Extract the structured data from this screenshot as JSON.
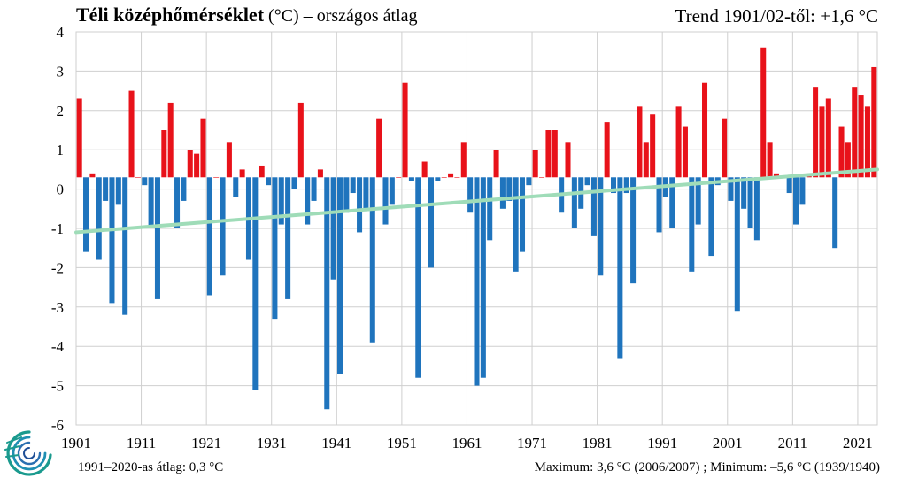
{
  "header": {
    "title_bold": "Téli középhőmérséklet",
    "title_unit": " (°C)",
    "title_rest": " – országos  átlag",
    "trend_text": "Trend 1901/02-től: +1,6 °C"
  },
  "footer": {
    "average_text": "1991–2020-as  átlag:  0,3 °C",
    "extremes_text": "Maximum:  3,6 °C (2006/2007)  ; Minimum:  –5,6 °C (1939/1940)"
  },
  "logo": {
    "name": "met-service-logo"
  },
  "chart_data": {
    "type": "bar",
    "title": "Téli középhőmérséklet (°C) – országos átlag",
    "xlabel": "",
    "ylabel": "°C",
    "ylim": [
      -6,
      4
    ],
    "y_ticks": [
      4,
      3,
      2,
      1,
      0,
      -1,
      -2,
      -3,
      -4,
      -5,
      -6
    ],
    "x_tick_labels": [
      "1901",
      "1911",
      "1921",
      "1931",
      "1941",
      "1951",
      "1961",
      "1971",
      "1981",
      "1991",
      "2001",
      "2011",
      "2021"
    ],
    "baseline_value": 0.3,
    "colors": {
      "above": "#e8121a",
      "below": "#1f74bd",
      "trend": "#9fdcb8",
      "grid": "#cfcfcf"
    },
    "start_year": 1901,
    "values": [
      2.3,
      -1.6,
      0.4,
      -1.8,
      -0.3,
      -2.9,
      -0.4,
      -3.2,
      2.5,
      0.3,
      0.1,
      -1.0,
      -2.8,
      1.5,
      2.2,
      -1.0,
      -0.3,
      1.0,
      0.9,
      1.8,
      -2.7,
      0.3,
      -2.2,
      1.2,
      -0.2,
      0.5,
      -1.8,
      -5.1,
      0.6,
      0.1,
      -3.3,
      -0.9,
      -2.8,
      0.0,
      2.2,
      -0.9,
      -0.3,
      0.5,
      -5.6,
      -2.3,
      -4.7,
      -0.6,
      -0.1,
      -1.1,
      -0.5,
      -3.9,
      1.8,
      -0.9,
      -0.4,
      0.3,
      2.7,
      0.2,
      -4.8,
      0.7,
      -2.0,
      0.2,
      0.3,
      0.4,
      0.3,
      1.2,
      -0.6,
      -5.0,
      -4.8,
      -1.3,
      1.0,
      -0.5,
      -0.3,
      -2.1,
      -1.6,
      0.1,
      1.0,
      0.3,
      1.5,
      1.5,
      -0.6,
      1.2,
      -1.0,
      -0.5,
      0.1,
      -1.2,
      -2.2,
      1.7,
      -0.1,
      -4.3,
      -0.1,
      -2.4,
      2.1,
      1.2,
      1.9,
      -1.1,
      -0.2,
      -1.0,
      2.1,
      1.6,
      -2.1,
      -0.9,
      2.7,
      -1.7,
      0.1,
      1.8,
      -0.3,
      -3.1,
      -0.5,
      -1.0,
      -1.3,
      3.6,
      1.2,
      0.4,
      0.3,
      -0.1,
      -0.9,
      -0.4,
      0.4,
      2.6,
      2.1,
      2.3,
      -1.5,
      1.6,
      1.2,
      2.6,
      2.4,
      2.1,
      3.1
    ],
    "trend": {
      "start": -1.1,
      "end": 0.5,
      "label": "Trend 1901/02-től: +1,6 °C"
    }
  }
}
